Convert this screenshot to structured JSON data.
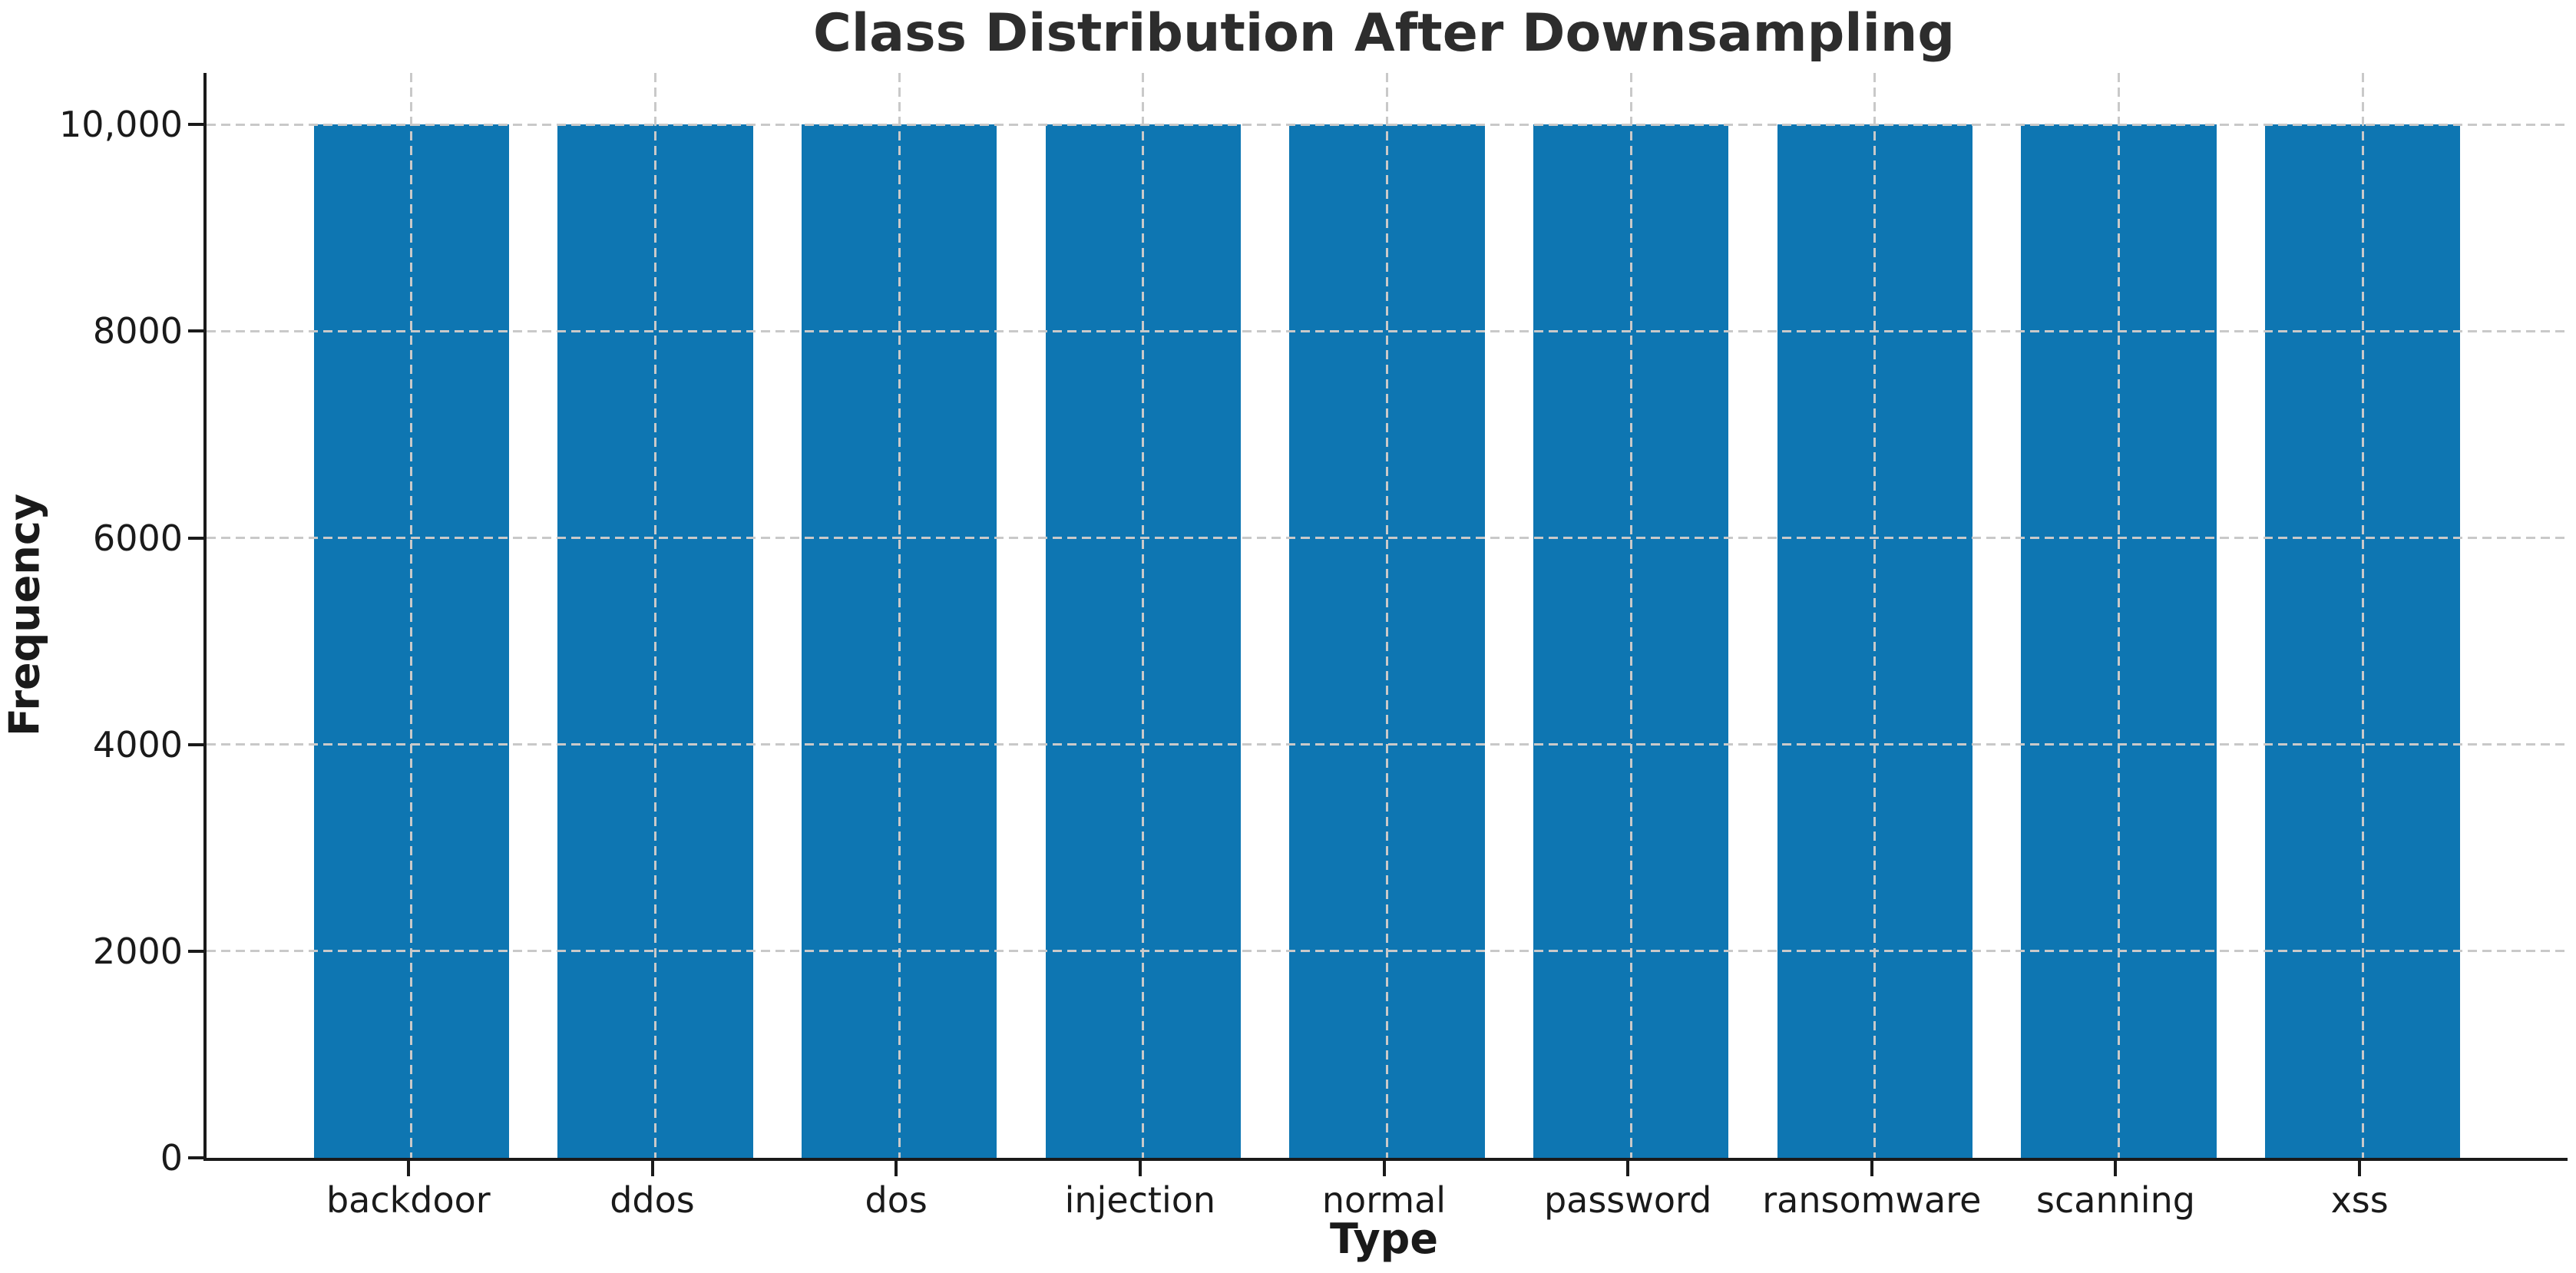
{
  "figure": {
    "background_color": "#ffffff",
    "spine_color": "#1a1a1a",
    "text_color": "#1a1a1a",
    "title_color": "#2d2d2d"
  },
  "chart_data": {
    "type": "bar",
    "title": "Class Distribution After Downsampling",
    "xlabel": "Type",
    "ylabel": "Frequency",
    "categories": [
      "backdoor",
      "ddos",
      "dos",
      "injection",
      "normal",
      "password",
      "ransomware",
      "scanning",
      "xss"
    ],
    "values": [
      10000,
      10000,
      10000,
      10000,
      10000,
      10000,
      10000,
      10000,
      10000
    ],
    "bar_color": "#0e76b2",
    "bar_width_fraction": 0.8,
    "yticks": [
      {
        "value": 0,
        "label": "0"
      },
      {
        "value": 2000,
        "label": "2000"
      },
      {
        "value": 4000,
        "label": "4000"
      },
      {
        "value": 6000,
        "label": "6000"
      },
      {
        "value": 8000,
        "label": "8000"
      },
      {
        "value": 10000,
        "label": "10,000"
      }
    ],
    "ylim": [
      0,
      10500
    ],
    "xlim": [
      -0.84,
      8.84
    ],
    "grid": "dashed",
    "grid_color": "#c9c9c9",
    "legend_position": "none"
  }
}
